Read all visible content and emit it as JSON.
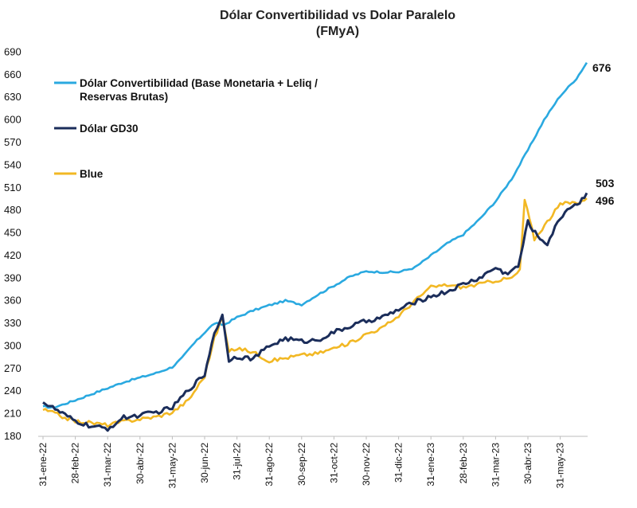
{
  "chart_data": {
    "type": "line",
    "title": "Dólar Convertibilidad vs Dolar Paralelo",
    "subtitle": "(FMyA)",
    "xlabel": "",
    "ylabel": "",
    "ylim": [
      180,
      700
    ],
    "yticks": [
      180,
      210,
      240,
      270,
      300,
      330,
      360,
      390,
      420,
      450,
      480,
      510,
      540,
      570,
      600,
      630,
      660,
      690
    ],
    "categories": [
      "31-ene-22",
      "28-feb-22",
      "31-mar-22",
      "30-abr-22",
      "31-may-22",
      "30-jun-22",
      "31-jul-22",
      "31-ago-22",
      "30-sep-22",
      "31-oct-22",
      "30-nov-22",
      "31-dic-22",
      "31-ene-23",
      "28-feb-23",
      "31-mar-23",
      "30-abr-23",
      "31-may-23"
    ],
    "legend_position": "top-left",
    "series": [
      {
        "name": "Dólar Convertibilidad (Base Monetaria + Leliq / Reservas  Brutas)",
        "legend_lines": [
          "Dólar Convertibilidad (Base Monetaria + Leliq /",
          "Reservas  Brutas)"
        ],
        "color": "#2aa9e0",
        "end_label": "676",
        "x": [
          0,
          0.3,
          0.6,
          1,
          1.5,
          2,
          2.5,
          3,
          3.5,
          4,
          4.3,
          4.6,
          5,
          5.3,
          5.6,
          6,
          6.5,
          7,
          7.5,
          8,
          8.5,
          9,
          9.5,
          10,
          10.5,
          11,
          11.5,
          12,
          12.5,
          13,
          13.5,
          14,
          14.5,
          15,
          15.5,
          16,
          16.5,
          16.82
        ],
        "values": [
          220,
          218,
          222,
          228,
          236,
          244,
          252,
          258,
          264,
          272,
          284,
          300,
          318,
          330,
          328,
          338,
          347,
          354,
          360,
          355,
          368,
          380,
          392,
          399,
          398,
          398,
          404,
          420,
          436,
          448,
          468,
          492,
          522,
          560,
          600,
          632,
          655,
          676
        ]
      },
      {
        "name": "Dólar GD30",
        "color": "#1b2d5a",
        "end_label": "503",
        "x": [
          0,
          0.3,
          0.6,
          1,
          1.5,
          2,
          2.5,
          3,
          3.5,
          4,
          4.5,
          5,
          5.3,
          5.55,
          5.75,
          6,
          6.5,
          7,
          7.5,
          8,
          8.5,
          9,
          9.5,
          10,
          10.5,
          11,
          11.5,
          12,
          12.5,
          13,
          13.5,
          14,
          14.3,
          14.7,
          15,
          15.3,
          15.6,
          16,
          16.3,
          16.6,
          16.82
        ],
        "values": [
          225,
          218,
          210,
          200,
          193,
          190,
          205,
          208,
          212,
          218,
          242,
          262,
          318,
          340,
          282,
          286,
          283,
          300,
          310,
          306,
          308,
          318,
          326,
          333,
          338,
          348,
          358,
          366,
          372,
          382,
          390,
          404,
          396,
          405,
          465,
          445,
          436,
          470,
          485,
          490,
          503
        ]
      },
      {
        "name": "Blue",
        "color": "#f2b824",
        "end_label": "496",
        "x": [
          0,
          0.3,
          0.6,
          1,
          1.5,
          2,
          2.5,
          3,
          3.5,
          4,
          4.5,
          5,
          5.3,
          5.55,
          5.75,
          6,
          6.5,
          7,
          7.5,
          8,
          8.5,
          9,
          9.5,
          10,
          10.5,
          11,
          11.5,
          12,
          12.5,
          13,
          13.5,
          14,
          14.5,
          14.75,
          14.9,
          15.2,
          15.6,
          16,
          16.3,
          16.6,
          16.82
        ],
        "values": [
          215,
          212,
          206,
          200,
          198,
          195,
          200,
          203,
          206,
          212,
          228,
          260,
          310,
          338,
          292,
          297,
          292,
          280,
          284,
          288,
          290,
          297,
          304,
          316,
          324,
          340,
          360,
          378,
          381,
          378,
          382,
          387,
          390,
          400,
          494,
          442,
          465,
          488,
          490,
          491,
          496
        ]
      }
    ]
  }
}
